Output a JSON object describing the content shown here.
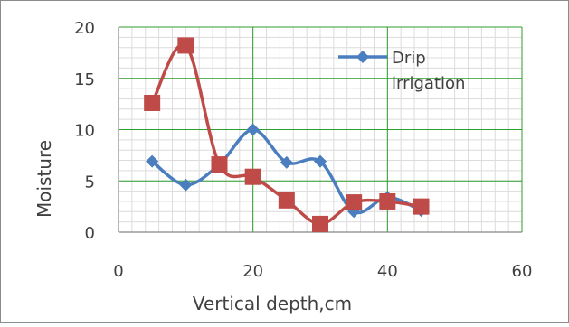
{
  "chart_data": {
    "type": "line",
    "title": "",
    "xlabel": "Vertical depth,cm",
    "ylabel": "Moisture",
    "xlim": [
      0,
      60
    ],
    "ylim": [
      0,
      20
    ],
    "x_ticks": [
      0,
      20,
      40,
      60
    ],
    "y_ticks": [
      0,
      5,
      10,
      15,
      20
    ],
    "x_minor_step": 2,
    "y_minor_step": 1,
    "grid": true,
    "grid_colors": {
      "minor": "#dcdcdc",
      "major": "#2e9e2e"
    },
    "legend_position": "top-right",
    "series": [
      {
        "name": "Drip irrigation",
        "legend_lines": [
          "Drip",
          "irrigation"
        ],
        "marker": "diamond",
        "color": "#4a7ebf",
        "x": [
          5,
          10,
          15,
          20,
          25,
          30,
          35,
          40,
          45
        ],
        "y": [
          6.9,
          4.6,
          6.6,
          10.0,
          6.8,
          6.9,
          2.0,
          3.4,
          2.1
        ]
      },
      {
        "marker": "square",
        "color": "#be4b48",
        "x": [
          5,
          10,
          15,
          20,
          25,
          30,
          35,
          40,
          45
        ],
        "y": [
          12.6,
          18.2,
          6.6,
          5.4,
          3.1,
          0.8,
          2.9,
          3.0,
          2.5
        ]
      }
    ]
  }
}
